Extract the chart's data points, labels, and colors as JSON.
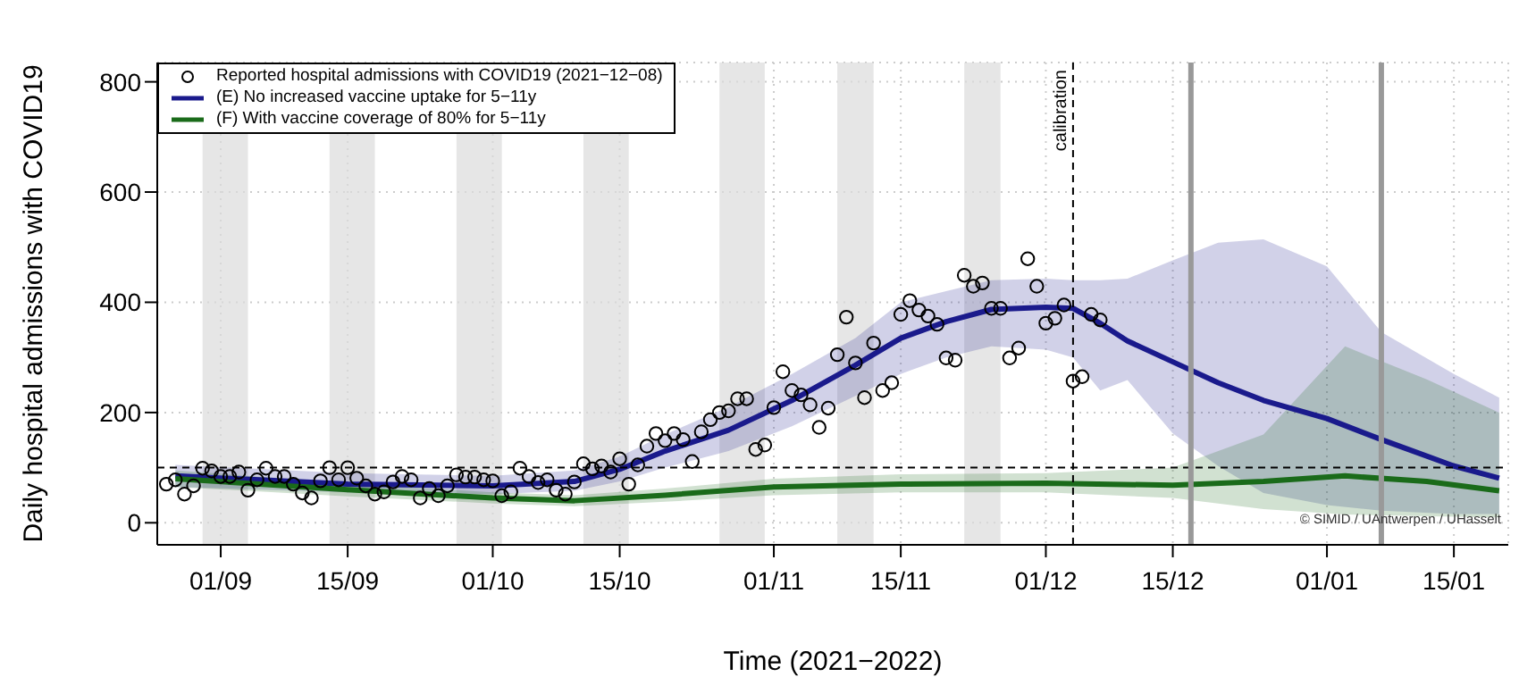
{
  "chart_data": {
    "type": "line",
    "xlabel": "Time (2021−2022)",
    "ylabel": "Daily hospital admissions with COVID19",
    "xlim": [
      "2021-08-25",
      "2022-01-21"
    ],
    "xticks": [
      {
        "value": "2021-09-01",
        "label": "01/09"
      },
      {
        "value": "2021-09-15",
        "label": "15/09"
      },
      {
        "value": "2021-10-01",
        "label": "01/10"
      },
      {
        "value": "2021-10-15",
        "label": "15/10"
      },
      {
        "value": "2021-11-01",
        "label": "01/11"
      },
      {
        "value": "2021-11-15",
        "label": "15/11"
      },
      {
        "value": "2021-12-01",
        "label": "01/12"
      },
      {
        "value": "2021-12-15",
        "label": "15/12"
      },
      {
        "value": "2022-01-01",
        "label": "01/01"
      },
      {
        "value": "2022-01-15",
        "label": "15/01"
      }
    ],
    "ylim": [
      -40,
      835
    ],
    "yticks": [
      0,
      200,
      400,
      600,
      800
    ],
    "grid": true,
    "legend": "top left",
    "series": [
      {
        "name": "Reported hospital admissions with COVID19 (2021−12−08)",
        "type": "scatter",
        "marker": "circle",
        "color": "#000000",
        "x": [
          "2021-08-26",
          "2021-08-27",
          "2021-08-28",
          "2021-08-29",
          "2021-08-30",
          "2021-08-31",
          "2021-09-01",
          "2021-09-02",
          "2021-09-03",
          "2021-09-04",
          "2021-09-05",
          "2021-09-06",
          "2021-09-07",
          "2021-09-08",
          "2021-09-09",
          "2021-09-10",
          "2021-09-11",
          "2021-09-12",
          "2021-09-13",
          "2021-09-14",
          "2021-09-15",
          "2021-09-16",
          "2021-09-17",
          "2021-09-18",
          "2021-09-19",
          "2021-09-20",
          "2021-09-21",
          "2021-09-22",
          "2021-09-23",
          "2021-09-24",
          "2021-09-25",
          "2021-09-26",
          "2021-09-27",
          "2021-09-28",
          "2021-09-29",
          "2021-09-30",
          "2021-10-01",
          "2021-10-02",
          "2021-10-03",
          "2021-10-04",
          "2021-10-05",
          "2021-10-06",
          "2021-10-07",
          "2021-10-08",
          "2021-10-09",
          "2021-10-10",
          "2021-10-11",
          "2021-10-12",
          "2021-10-13",
          "2021-10-14",
          "2021-10-15",
          "2021-10-16",
          "2021-10-17",
          "2021-10-18",
          "2021-10-19",
          "2021-10-20",
          "2021-10-21",
          "2021-10-22",
          "2021-10-23",
          "2021-10-24",
          "2021-10-25",
          "2021-10-26",
          "2021-10-27",
          "2021-10-28",
          "2021-10-29",
          "2021-10-30",
          "2021-10-31",
          "2021-11-01",
          "2021-11-02",
          "2021-11-03",
          "2021-11-04",
          "2021-11-05",
          "2021-11-06",
          "2021-11-07",
          "2021-11-08",
          "2021-11-09",
          "2021-11-10",
          "2021-11-11",
          "2021-11-12",
          "2021-11-13",
          "2021-11-14",
          "2021-11-15",
          "2021-11-16",
          "2021-11-17",
          "2021-11-18",
          "2021-11-19",
          "2021-11-20",
          "2021-11-21",
          "2021-11-22",
          "2021-11-23",
          "2021-11-24",
          "2021-11-25",
          "2021-11-26",
          "2021-11-27",
          "2021-11-28",
          "2021-11-29",
          "2021-11-30",
          "2021-12-01",
          "2021-12-02",
          "2021-12-03",
          "2021-12-04",
          "2021-12-05",
          "2021-12-06",
          "2021-12-07"
        ],
        "values": [
          70,
          78,
          52,
          67,
          99,
          94,
          84,
          84,
          92,
          59,
          78,
          99,
          84,
          84,
          70,
          54,
          45,
          76,
          100,
          78,
          100,
          81,
          67,
          52,
          56,
          74,
          84,
          78,
          45,
          62,
          49,
          67,
          87,
          83,
          83,
          78,
          76,
          49,
          56,
          99,
          84,
          73,
          78,
          59,
          52,
          74,
          107,
          98,
          103,
          92,
          116,
          70,
          105,
          139,
          162,
          149,
          162,
          151,
          111,
          165,
          187,
          200,
          203,
          225,
          225,
          133,
          141,
          209,
          274,
          240,
          232,
          214,
          173,
          208,
          305,
          373,
          290,
          227,
          326,
          240,
          254,
          378,
          403,
          386,
          375,
          360,
          299,
          295,
          449,
          429,
          435,
          389,
          389,
          299,
          317,
          479,
          429,
          362,
          371,
          395,
          257,
          265,
          378,
          368
        ]
      },
      {
        "name": "(E) No increased vaccine uptake for 5−11y",
        "color": "#1a1a8c",
        "x": [
          "2021-08-27",
          "2021-09-15",
          "2021-10-01",
          "2021-10-10",
          "2021-10-15",
          "2021-10-20",
          "2021-10-27",
          "2021-11-03",
          "2021-11-10",
          "2021-11-15",
          "2021-11-20",
          "2021-11-25",
          "2021-12-01",
          "2021-12-04",
          "2021-12-07",
          "2021-12-10",
          "2021-12-15",
          "2021-12-20",
          "2021-12-25",
          "2022-01-01",
          "2022-01-07",
          "2022-01-15",
          "2022-01-20"
        ],
        "values": [
          85,
          70,
          67,
          75,
          97,
          130,
          168,
          222,
          286,
          335,
          365,
          387,
          391,
          389,
          362,
          330,
          292,
          254,
          222,
          189,
          151,
          103,
          81
        ],
        "lower": [
          65,
          55,
          52,
          58,
          75,
          100,
          130,
          175,
          230,
          270,
          300,
          320,
          314,
          300,
          240,
          259,
          162,
          103,
          54,
          32,
          22,
          16,
          16
        ],
        "upper": [
          105,
          90,
          85,
          95,
          120,
          160,
          210,
          270,
          335,
          400,
          420,
          440,
          443,
          440,
          440,
          443,
          476,
          508,
          514,
          465,
          346,
          270,
          227
        ]
      },
      {
        "name": "(F) With vaccine coverage of 80% for 5−11y",
        "color": "#1a6b1a",
        "x": [
          "2021-08-27",
          "2021-09-15",
          "2021-10-01",
          "2021-10-10",
          "2021-10-20",
          "2021-11-01",
          "2021-11-15",
          "2021-12-01",
          "2021-12-15",
          "2021-12-25",
          "2022-01-03",
          "2022-01-12",
          "2022-01-20"
        ],
        "values": [
          80,
          60,
          45,
          40,
          50,
          65,
          70,
          72,
          68,
          75,
          85,
          75,
          58
        ],
        "lower": [
          65,
          48,
          35,
          30,
          38,
          50,
          55,
          55,
          45,
          25,
          15,
          12,
          10
        ],
        "upper": [
          95,
          72,
          55,
          50,
          62,
          80,
          88,
          90,
          100,
          160,
          320,
          260,
          200
        ]
      }
    ],
    "ref_lines": [
      {
        "axis": "y",
        "value": 100,
        "label": null,
        "color": "#000000",
        "line_style": "dashed"
      },
      {
        "axis": "x",
        "value": "2021-12-04",
        "label": "calibration",
        "color": "#000000",
        "line_style": "dashed"
      },
      {
        "axis": "x",
        "value": "2021-12-17",
        "label": null,
        "color": "#999999",
        "line_style": "solid"
      },
      {
        "axis": "x",
        "value": "2022-01-07",
        "label": null,
        "color": "#999999",
        "line_style": "solid"
      }
    ],
    "bands": [
      {
        "axis": "x",
        "from": "2021-08-30",
        "to": "2021-09-04",
        "label": null,
        "color": "#dcdcdc"
      },
      {
        "axis": "x",
        "from": "2021-09-13",
        "to": "2021-09-18",
        "label": null,
        "color": "#dcdcdc"
      },
      {
        "axis": "x",
        "from": "2021-09-27",
        "to": "2021-10-02",
        "label": null,
        "color": "#dcdcdc"
      },
      {
        "axis": "x",
        "from": "2021-10-11",
        "to": "2021-10-16",
        "label": null,
        "color": "#dcdcdc"
      },
      {
        "axis": "x",
        "from": "2021-10-26",
        "to": "2021-10-31",
        "label": null,
        "color": "#dcdcdc"
      },
      {
        "axis": "x",
        "from": "2021-11-08",
        "to": "2021-11-12",
        "label": null,
        "color": "#dcdcdc"
      },
      {
        "axis": "x",
        "from": "2021-11-22",
        "to": "2021-11-26",
        "label": null,
        "color": "#dcdcdc"
      }
    ],
    "annotations": [
      "© SIMID / UAntwerpen / UHasselt"
    ]
  }
}
